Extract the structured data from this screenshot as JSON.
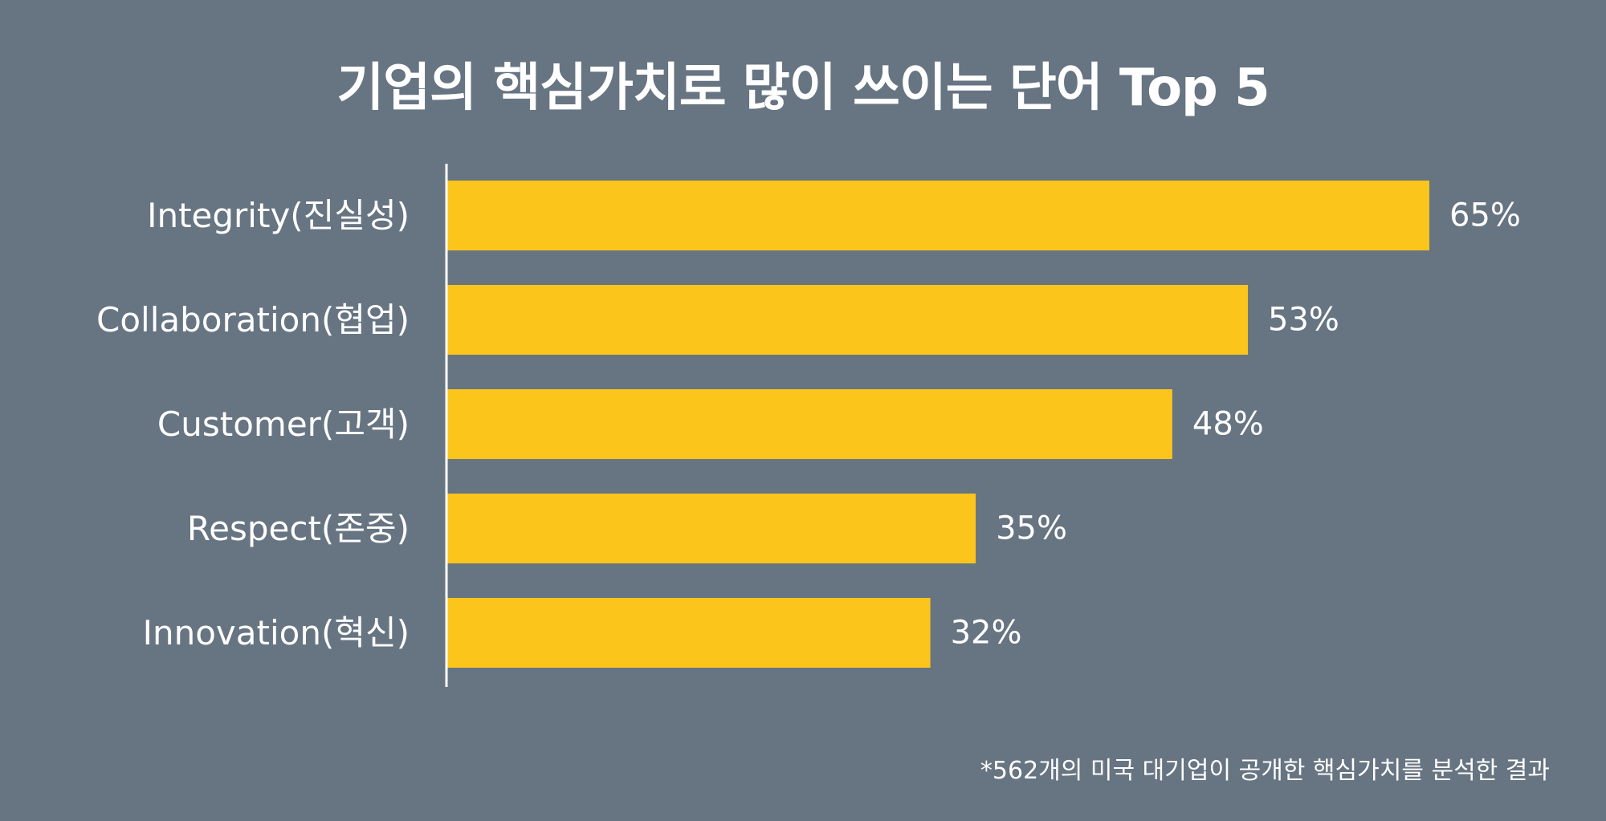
{
  "chart_data": {
    "type": "bar",
    "orientation": "horizontal",
    "title": "기업의 핵심가치로 많이 쓰이는 단어 Top 5",
    "categories": [
      "Integrity(진실성)",
      "Collaboration(협업)",
      "Customer(고객)",
      "Respect(존중)",
      "Innovation(혁신)"
    ],
    "values": [
      65,
      53,
      48,
      35,
      32
    ],
    "value_labels": [
      "65%",
      "53%",
      "48%",
      "35%",
      "32%"
    ],
    "unit": "%",
    "xlim": [
      0,
      65
    ],
    "grid": false,
    "legend": "none",
    "footnote": "*562개의 미국 대기업이 공개한 핵심가치를 분석한 결과"
  },
  "colors": {
    "background": "#677482",
    "bar": "#FBC51B",
    "text": "#FFFFFF",
    "axis": "#FFFFFF"
  }
}
